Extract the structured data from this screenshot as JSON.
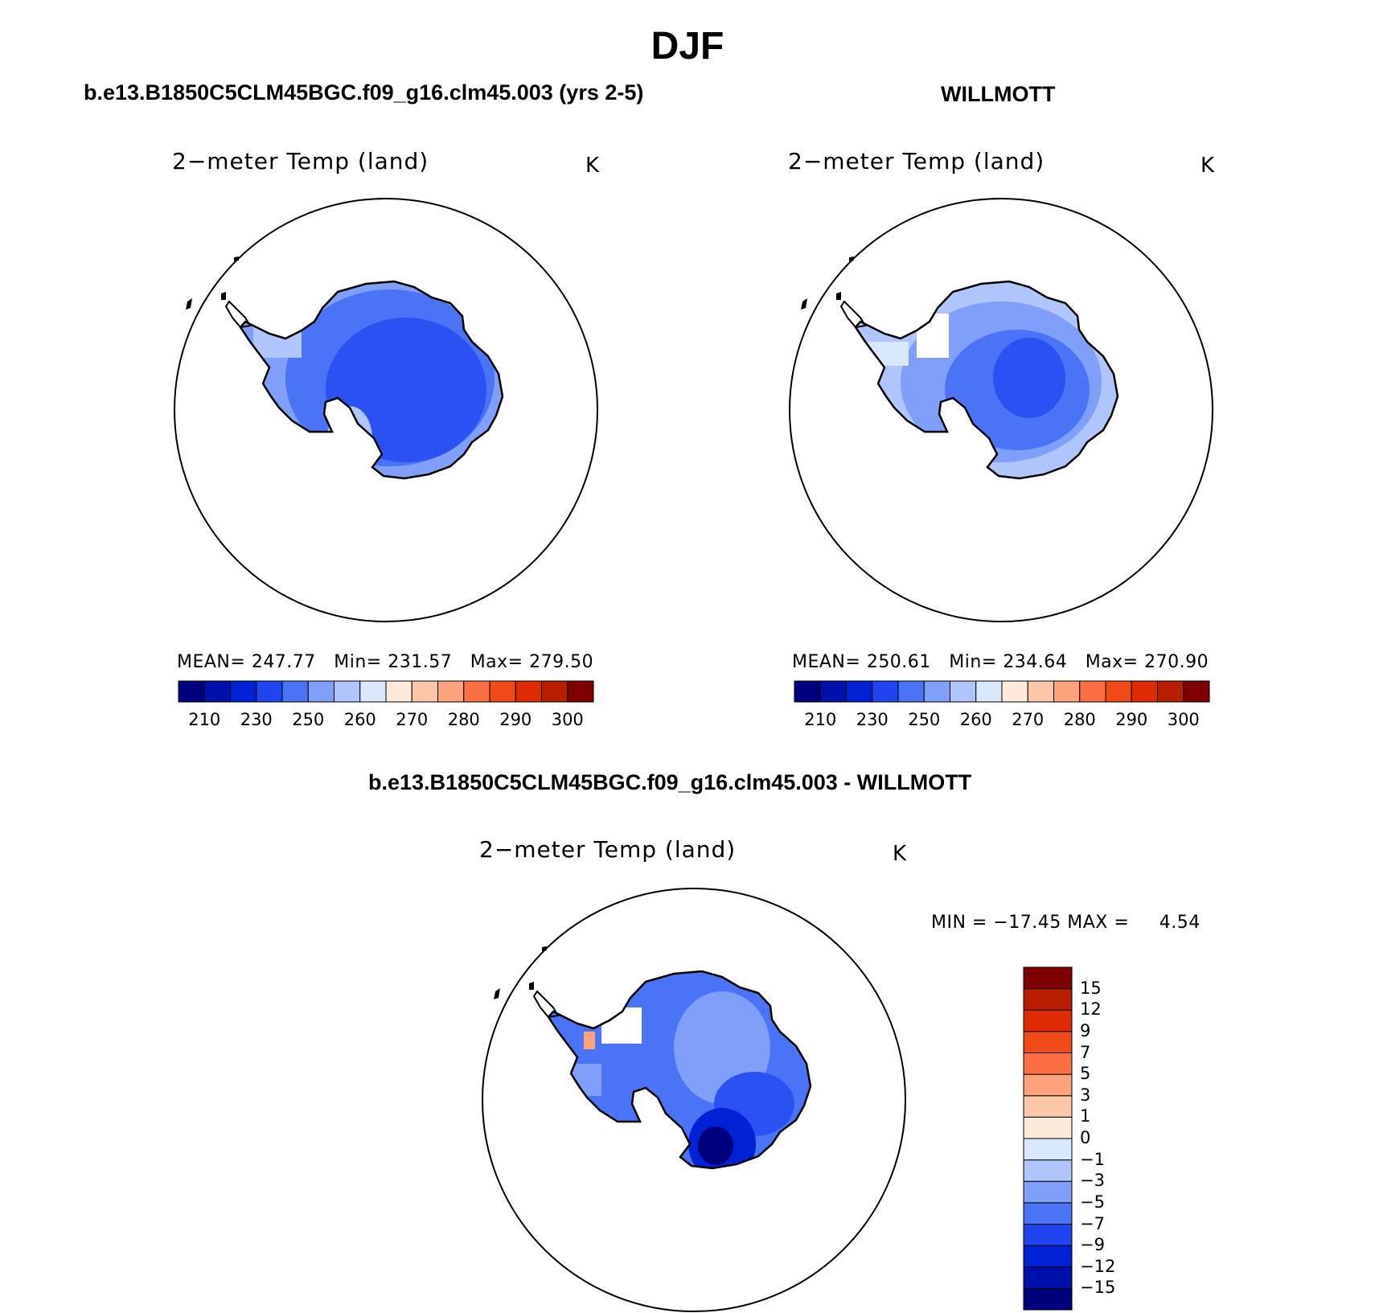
{
  "figure": {
    "title": "DJF",
    "panels": [
      {
        "id": "model",
        "case_title": "b.e13.B1850C5CLM45BGC.f09_g16.clm45.003 (yrs 2-5)",
        "label": "2−meter Temp (land)",
        "units": "K",
        "stats": "MEAN= 247.77   Min= 231.57   Max= 279.50",
        "fill": "cold"
      },
      {
        "id": "obs",
        "case_title": "WILLMOTT",
        "label": "2−meter Temp (land)",
        "units": "K",
        "stats": "MEAN= 250.61   Min= 234.64   Max= 270.90",
        "fill": "warmer"
      },
      {
        "id": "diff",
        "case_title": "b.e13.B1850C5CLM45BGC.f09_g16.clm45.003 - WILLMOTT",
        "label": "2−meter Temp (land)",
        "units": "K",
        "stats": "MIN = −17.45 MAX =     4.54",
        "fill": "diff"
      }
    ],
    "abs_colorbar": {
      "colors": [
        "#00007f",
        "#0010aa",
        "#0022d4",
        "#1f44f0",
        "#4b73f5",
        "#7f9ff8",
        "#b0c5fb",
        "#d9e8fc",
        "#ffe9d8",
        "#fcc7a8",
        "#fca37d",
        "#fb6f42",
        "#f04a19",
        "#de2a05",
        "#b91d00",
        "#7f0000"
      ],
      "ticks": [
        "210",
        "230",
        "250",
        "260",
        "270",
        "280",
        "290",
        "300"
      ]
    },
    "diff_colorbar": {
      "colors": [
        "#00007f",
        "#0010aa",
        "#0022d4",
        "#1f44f0",
        "#4b73f5",
        "#7f9ff8",
        "#b0c5fb",
        "#d9e8fc",
        "#ffe9d8",
        "#fcc7a8",
        "#fca37d",
        "#fb6f42",
        "#f04a19",
        "#de2a05",
        "#b91d00",
        "#7f0000"
      ],
      "ticks": [
        "−15",
        "−12",
        "−9",
        "−7",
        "−5",
        "−3",
        "−1",
        "0",
        "1",
        "3",
        "5",
        "7",
        "9",
        "12",
        "15"
      ]
    }
  }
}
